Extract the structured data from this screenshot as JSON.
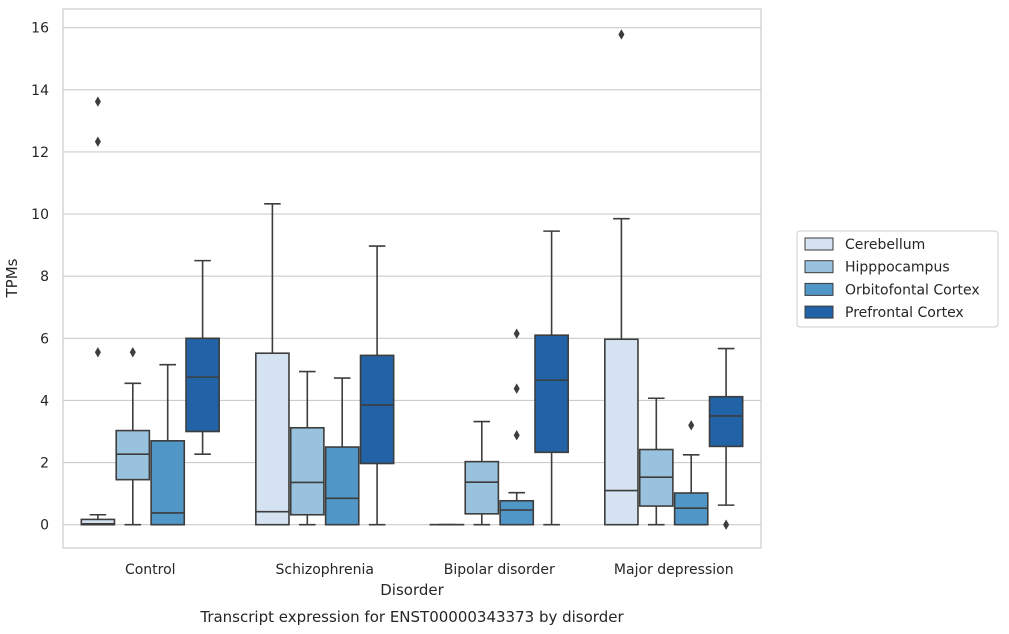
{
  "chart_data": {
    "type": "box",
    "xlabel": "Disorder",
    "ylabel": "TPMs",
    "caption": "Transcript expression for ENST00000343373 by disorder",
    "categories": [
      "Control",
      "Schizophrenia",
      "Bipolar disorder",
      "Major depression"
    ],
    "ylim": [
      -0.75,
      16.6
    ],
    "yticks": [
      0,
      2,
      4,
      6,
      8,
      10,
      12,
      14,
      16
    ],
    "grid": true,
    "legend_position": "right",
    "series": [
      {
        "name": "Cerebellum",
        "color": "#d4e2f1",
        "boxes": [
          {
            "min": 0.0,
            "q1": 0.0,
            "median": 0.03,
            "q3": 0.17,
            "max": 0.32,
            "outliers": [
              5.55,
              12.33,
              13.62
            ]
          },
          {
            "min": 0.0,
            "q1": 0.0,
            "median": 0.42,
            "q3": 5.52,
            "max": 10.33,
            "outliers": []
          },
          {
            "min": 0.0,
            "q1": 0.0,
            "median": 0.0,
            "q3": 0.0,
            "max": 0.0,
            "outliers": []
          },
          {
            "min": 0.0,
            "q1": 0.0,
            "median": 1.1,
            "q3": 5.97,
            "max": 9.85,
            "outliers": [
              15.78
            ]
          }
        ]
      },
      {
        "name": "Hipppocampus",
        "color": "#99c2de",
        "boxes": [
          {
            "min": 0.0,
            "q1": 1.45,
            "median": 2.27,
            "q3": 3.03,
            "max": 4.55,
            "outliers": [
              5.55
            ]
          },
          {
            "min": 0.0,
            "q1": 0.32,
            "median": 1.36,
            "q3": 3.12,
            "max": 4.93,
            "outliers": []
          },
          {
            "min": 0.0,
            "q1": 0.35,
            "median": 1.37,
            "q3": 2.03,
            "max": 3.32,
            "outliers": []
          },
          {
            "min": 0.0,
            "q1": 0.6,
            "median": 1.53,
            "q3": 2.42,
            "max": 4.07,
            "outliers": []
          }
        ]
      },
      {
        "name": "Orbitofontal Cortex",
        "color": "#5096c7",
        "boxes": [
          {
            "min": 0.0,
            "q1": 0.0,
            "median": 0.38,
            "q3": 2.7,
            "max": 5.15,
            "outliers": []
          },
          {
            "min": 0.0,
            "q1": 0.0,
            "median": 0.85,
            "q3": 2.5,
            "max": 4.72,
            "outliers": []
          },
          {
            "min": 0.0,
            "q1": 0.0,
            "median": 0.47,
            "q3": 0.77,
            "max": 1.03,
            "outliers": [
              2.88,
              4.38,
              6.15
            ]
          },
          {
            "min": 0.0,
            "q1": 0.0,
            "median": 0.53,
            "q3": 1.02,
            "max": 2.25,
            "outliers": [
              3.2
            ]
          }
        ]
      },
      {
        "name": "Prefrontal Cortex",
        "color": "#2263a8",
        "boxes": [
          {
            "min": 2.27,
            "q1": 3.0,
            "median": 4.75,
            "q3": 6.0,
            "max": 8.5,
            "outliers": []
          },
          {
            "min": 0.0,
            "q1": 1.97,
            "median": 3.85,
            "q3": 5.45,
            "max": 8.97,
            "outliers": []
          },
          {
            "min": 0.0,
            "q1": 2.33,
            "median": 4.65,
            "q3": 6.1,
            "max": 9.45,
            "outliers": []
          },
          {
            "min": 0.63,
            "q1": 2.52,
            "median": 3.5,
            "q3": 4.12,
            "max": 5.67,
            "outliers": [
              0.0
            ]
          }
        ]
      }
    ]
  }
}
